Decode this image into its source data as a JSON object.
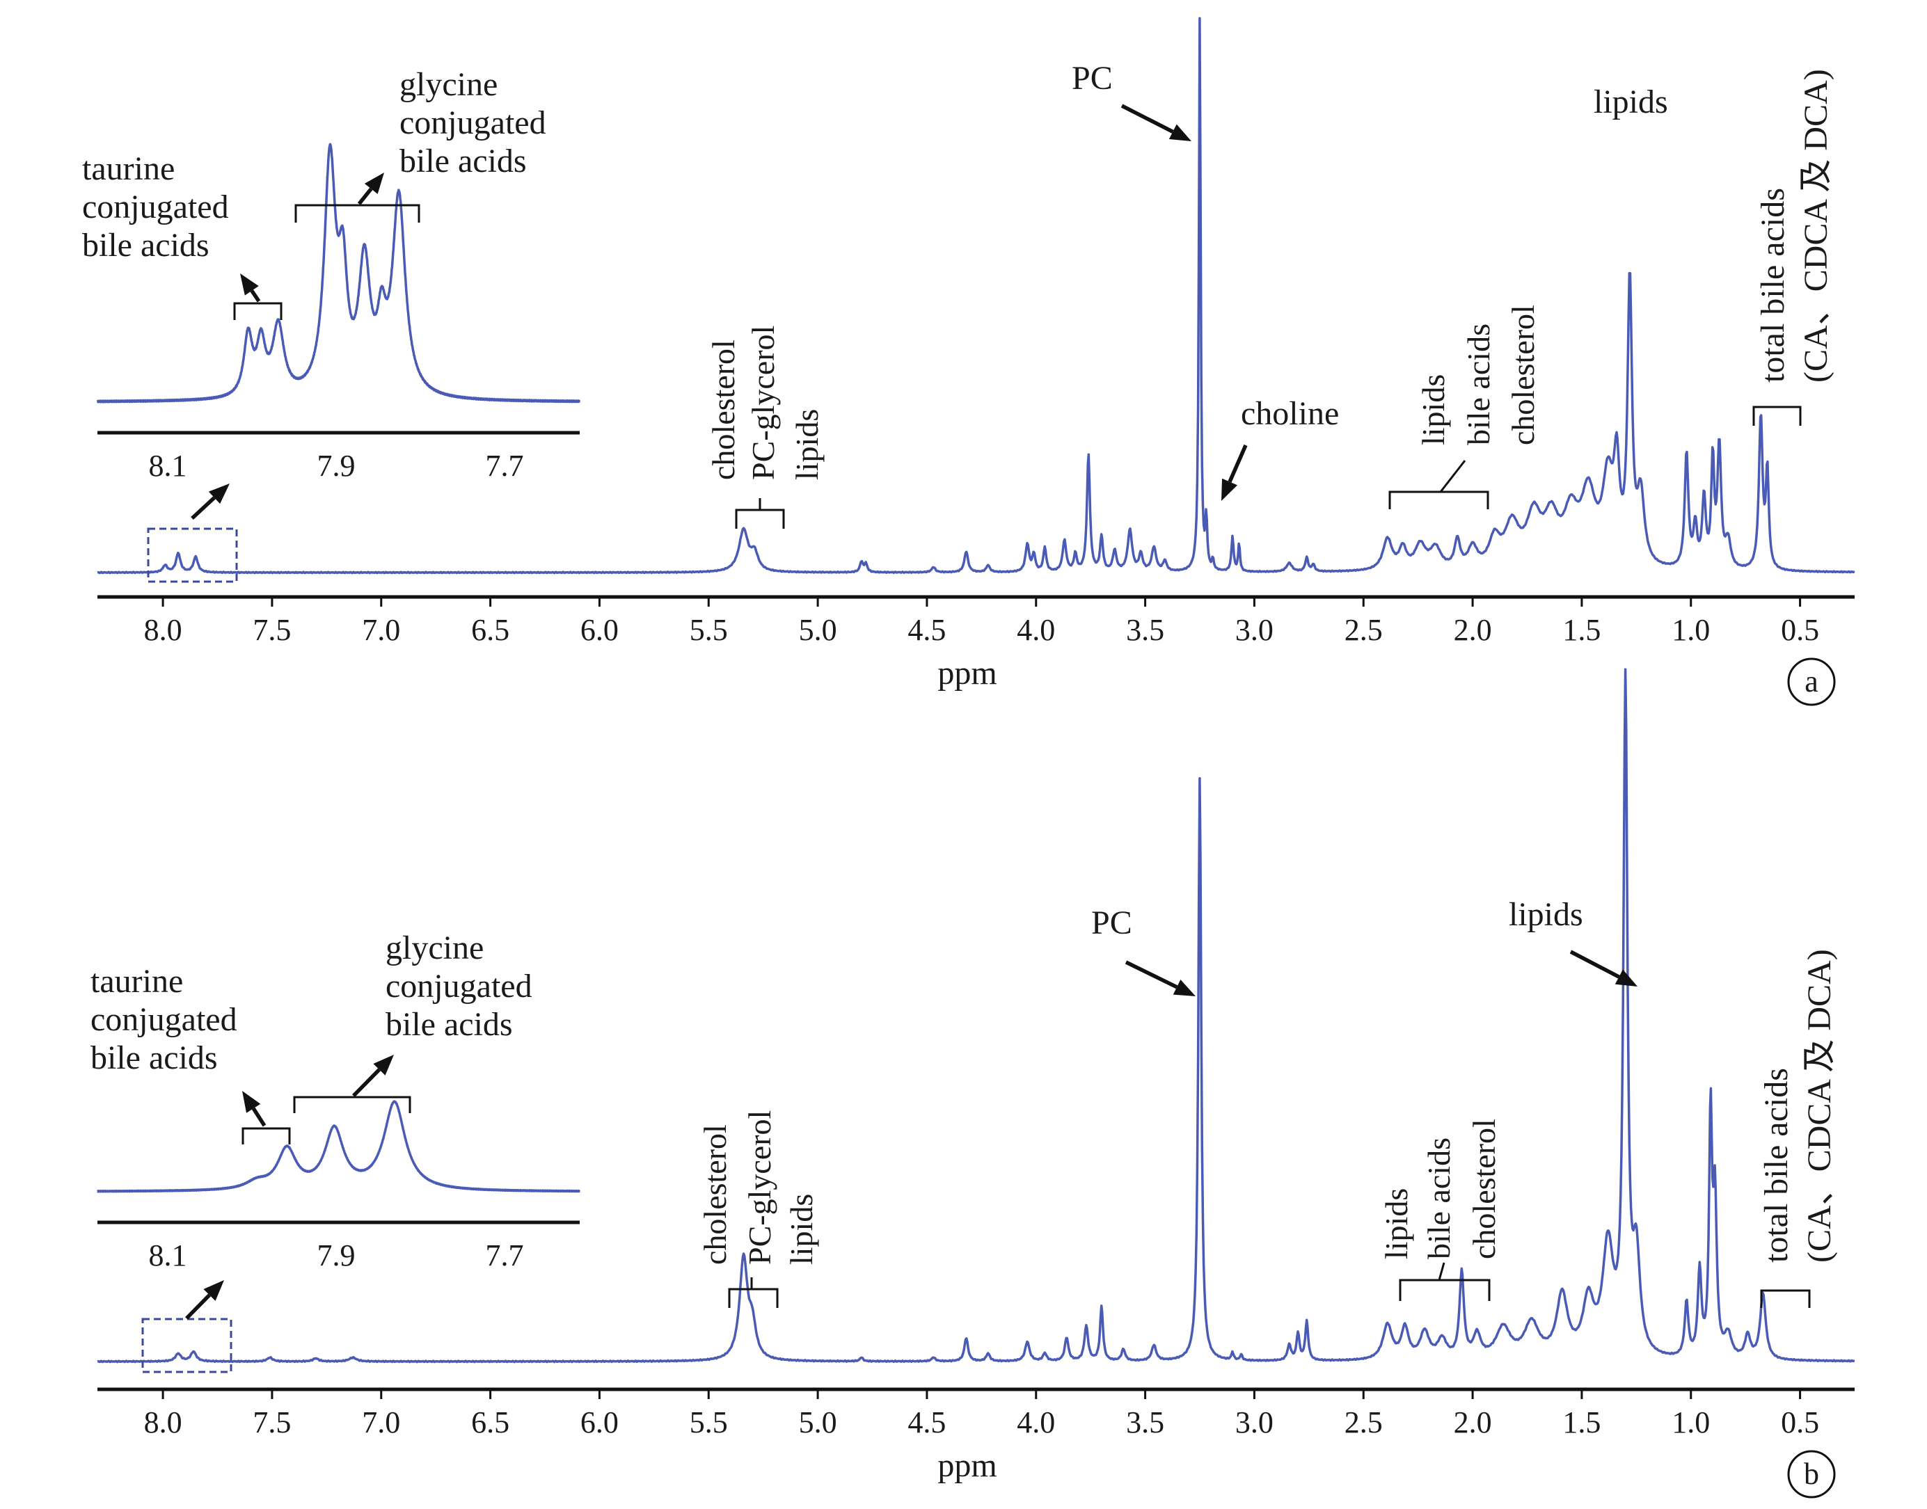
{
  "colors": {
    "spectrum": "#4a5bb5",
    "axis": "#111111",
    "text": "#1a1a1a"
  },
  "chart_data": [
    {
      "type": "line",
      "panel_label": "a",
      "xlabel": "ppm",
      "xlim": [
        8.3,
        0.25
      ],
      "x_reversed": true,
      "x_ticks": [
        "8.0",
        "7.5",
        "7.0",
        "6.5",
        "6.0",
        "5.5",
        "5.0",
        "4.5",
        "4.0",
        "3.5",
        "3.0",
        "2.5",
        "2.0",
        "1.5",
        "1.0",
        "0.5"
      ],
      "inset": {
        "x_ticks": [
          "8.1",
          "7.9",
          "7.7"
        ],
        "labels": {
          "taurine": [
            "taurine",
            "conjugated",
            "bile acids"
          ],
          "glycine": [
            "glycine",
            "conjugated",
            "bile acids"
          ]
        },
        "peaks": [
          {
            "ppm": 8.025,
            "h": 0.26,
            "w": 0.006
          },
          {
            "ppm": 8.01,
            "h": 0.22,
            "w": 0.006
          },
          {
            "ppm": 7.99,
            "h": 0.3,
            "w": 0.008
          },
          {
            "ppm": 7.93,
            "h": 1.0,
            "w": 0.008
          },
          {
            "ppm": 7.915,
            "h": 0.45,
            "w": 0.006
          },
          {
            "ppm": 7.89,
            "h": 0.55,
            "w": 0.008
          },
          {
            "ppm": 7.87,
            "h": 0.25,
            "w": 0.006
          },
          {
            "ppm": 7.85,
            "h": 0.85,
            "w": 0.009
          }
        ]
      },
      "annotations": {
        "PC": "PC",
        "choline": "choline",
        "lipids_main": "lipids",
        "cluster_55": [
          "cholesterol",
          "PC-glycerol",
          "lipids"
        ],
        "cluster_22": [
          "lipids",
          "bile acids",
          "cholesterol"
        ],
        "total_bile": [
          "total bile acids",
          "(CA、CDCA 及 DCA)"
        ]
      },
      "peaks": [
        {
          "ppm": 7.93,
          "h": 0.055,
          "w": 0.012
        },
        {
          "ppm": 7.85,
          "h": 0.045,
          "w": 0.012
        },
        {
          "ppm": 7.99,
          "h": 0.02,
          "w": 0.012
        },
        {
          "ppm": 5.34,
          "h": 0.12,
          "w": 0.025
        },
        {
          "ppm": 5.29,
          "h": 0.05,
          "w": 0.02
        },
        {
          "ppm": 4.8,
          "h": 0.03,
          "w": 0.008
        },
        {
          "ppm": 4.78,
          "h": 0.025,
          "w": 0.008
        },
        {
          "ppm": 4.47,
          "h": 0.015,
          "w": 0.01
        },
        {
          "ppm": 4.32,
          "h": 0.06,
          "w": 0.01
        },
        {
          "ppm": 4.22,
          "h": 0.02,
          "w": 0.01
        },
        {
          "ppm": 4.04,
          "h": 0.08,
          "w": 0.01
        },
        {
          "ppm": 4.01,
          "h": 0.05,
          "w": 0.008
        },
        {
          "ppm": 3.96,
          "h": 0.07,
          "w": 0.008
        },
        {
          "ppm": 3.87,
          "h": 0.09,
          "w": 0.01
        },
        {
          "ppm": 3.82,
          "h": 0.05,
          "w": 0.008
        },
        {
          "ppm": 3.76,
          "h": 0.34,
          "w": 0.008
        },
        {
          "ppm": 3.7,
          "h": 0.1,
          "w": 0.008
        },
        {
          "ppm": 3.64,
          "h": 0.06,
          "w": 0.01
        },
        {
          "ppm": 3.57,
          "h": 0.12,
          "w": 0.012
        },
        {
          "ppm": 3.52,
          "h": 0.05,
          "w": 0.01
        },
        {
          "ppm": 3.46,
          "h": 0.07,
          "w": 0.012
        },
        {
          "ppm": 3.41,
          "h": 0.03,
          "w": 0.01
        },
        {
          "ppm": 3.25,
          "h": 1.6,
          "w": 0.005
        },
        {
          "ppm": 3.22,
          "h": 0.14,
          "w": 0.005
        },
        {
          "ppm": 3.19,
          "h": 0.03,
          "w": 0.005
        },
        {
          "ppm": 3.1,
          "h": 0.1,
          "w": 0.006
        },
        {
          "ppm": 3.07,
          "h": 0.08,
          "w": 0.005
        },
        {
          "ppm": 2.84,
          "h": 0.025,
          "w": 0.015
        },
        {
          "ppm": 2.76,
          "h": 0.04,
          "w": 0.008
        },
        {
          "ppm": 2.73,
          "h": 0.02,
          "w": 0.008
        },
        {
          "ppm": 2.39,
          "h": 0.09,
          "w": 0.025
        },
        {
          "ppm": 2.32,
          "h": 0.06,
          "w": 0.02
        },
        {
          "ppm": 2.24,
          "h": 0.07,
          "w": 0.03
        },
        {
          "ppm": 2.17,
          "h": 0.06,
          "w": 0.03
        },
        {
          "ppm": 2.07,
          "h": 0.08,
          "w": 0.015
        },
        {
          "ppm": 2.0,
          "h": 0.06,
          "w": 0.025
        },
        {
          "ppm": 1.9,
          "h": 0.08,
          "w": 0.03
        },
        {
          "ppm": 1.82,
          "h": 0.12,
          "w": 0.04
        },
        {
          "ppm": 1.72,
          "h": 0.14,
          "w": 0.04
        },
        {
          "ppm": 1.64,
          "h": 0.13,
          "w": 0.04
        },
        {
          "ppm": 1.55,
          "h": 0.14,
          "w": 0.04
        },
        {
          "ppm": 1.47,
          "h": 0.2,
          "w": 0.04
        },
        {
          "ppm": 1.38,
          "h": 0.24,
          "w": 0.03
        },
        {
          "ppm": 1.34,
          "h": 0.25,
          "w": 0.015
        },
        {
          "ppm": 1.28,
          "h": 0.8,
          "w": 0.012
        },
        {
          "ppm": 1.23,
          "h": 0.2,
          "w": 0.02
        },
        {
          "ppm": 1.02,
          "h": 0.33,
          "w": 0.01
        },
        {
          "ppm": 0.98,
          "h": 0.12,
          "w": 0.01
        },
        {
          "ppm": 0.94,
          "h": 0.2,
          "w": 0.01
        },
        {
          "ppm": 0.9,
          "h": 0.31,
          "w": 0.008
        },
        {
          "ppm": 0.87,
          "h": 0.35,
          "w": 0.01
        },
        {
          "ppm": 0.83,
          "h": 0.08,
          "w": 0.015
        },
        {
          "ppm": 0.68,
          "h": 0.44,
          "w": 0.01
        },
        {
          "ppm": 0.65,
          "h": 0.28,
          "w": 0.008
        }
      ]
    },
    {
      "type": "line",
      "panel_label": "b",
      "xlabel": "ppm",
      "xlim": [
        8.3,
        0.25
      ],
      "x_reversed": true,
      "x_ticks": [
        "8.0",
        "7.5",
        "7.0",
        "6.5",
        "6.0",
        "5.5",
        "5.0",
        "4.5",
        "4.0",
        "3.5",
        "3.0",
        "2.5",
        "2.0",
        "1.5",
        "1.0",
        "0.5"
      ],
      "inset": {
        "x_ticks": [
          "8.1",
          "7.9",
          "7.7"
        ],
        "labels": {
          "taurine": [
            "taurine",
            "conjugated",
            "bile acids"
          ],
          "glycine": [
            "glycine",
            "conjugated",
            "bile acids"
          ]
        },
        "peaks": [
          {
            "ppm": 7.98,
            "h": 0.33,
            "w": 0.013
          },
          {
            "ppm": 7.925,
            "h": 0.49,
            "w": 0.013
          },
          {
            "ppm": 7.855,
            "h": 0.72,
            "w": 0.015
          },
          {
            "ppm": 8.015,
            "h": 0.06,
            "w": 0.015
          }
        ]
      },
      "annotations": {
        "PC": "PC",
        "lipids_main": "lipids",
        "cluster_55": [
          "cholesterol",
          "PC-glycerol",
          "lipids"
        ],
        "cluster_22": [
          "lipids",
          "bile acids",
          "cholesterol"
        ],
        "total_bile": [
          "total bile acids",
          "(CA、CDCA 及 DCA)"
        ]
      },
      "peaks": [
        {
          "ppm": 7.93,
          "h": 0.02,
          "w": 0.015
        },
        {
          "ppm": 7.86,
          "h": 0.025,
          "w": 0.015
        },
        {
          "ppm": 7.51,
          "h": 0.01,
          "w": 0.015
        },
        {
          "ppm": 7.3,
          "h": 0.008,
          "w": 0.015
        },
        {
          "ppm": 7.13,
          "h": 0.01,
          "w": 0.02
        },
        {
          "ppm": 5.34,
          "h": 0.26,
          "w": 0.022
        },
        {
          "ppm": 5.3,
          "h": 0.08,
          "w": 0.02
        },
        {
          "ppm": 4.8,
          "h": 0.01,
          "w": 0.008
        },
        {
          "ppm": 4.47,
          "h": 0.01,
          "w": 0.01
        },
        {
          "ppm": 4.32,
          "h": 0.06,
          "w": 0.01
        },
        {
          "ppm": 4.22,
          "h": 0.02,
          "w": 0.01
        },
        {
          "ppm": 4.04,
          "h": 0.05,
          "w": 0.012
        },
        {
          "ppm": 3.96,
          "h": 0.02,
          "w": 0.01
        },
        {
          "ppm": 3.86,
          "h": 0.06,
          "w": 0.01
        },
        {
          "ppm": 3.77,
          "h": 0.09,
          "w": 0.01
        },
        {
          "ppm": 3.7,
          "h": 0.14,
          "w": 0.008
        },
        {
          "ppm": 3.6,
          "h": 0.03,
          "w": 0.01
        },
        {
          "ppm": 3.46,
          "h": 0.04,
          "w": 0.012
        },
        {
          "ppm": 3.25,
          "h": 1.5,
          "w": 0.008
        },
        {
          "ppm": 3.1,
          "h": 0.02,
          "w": 0.006
        },
        {
          "ppm": 3.06,
          "h": 0.015,
          "w": 0.006
        },
        {
          "ppm": 2.8,
          "h": 0.07,
          "w": 0.008
        },
        {
          "ppm": 2.76,
          "h": 0.1,
          "w": 0.008
        },
        {
          "ppm": 2.84,
          "h": 0.04,
          "w": 0.01
        },
        {
          "ppm": 2.39,
          "h": 0.09,
          "w": 0.025
        },
        {
          "ppm": 2.31,
          "h": 0.08,
          "w": 0.02
        },
        {
          "ppm": 2.22,
          "h": 0.07,
          "w": 0.025
        },
        {
          "ppm": 2.14,
          "h": 0.05,
          "w": 0.025
        },
        {
          "ppm": 2.05,
          "h": 0.22,
          "w": 0.012
        },
        {
          "ppm": 1.98,
          "h": 0.06,
          "w": 0.02
        },
        {
          "ppm": 1.86,
          "h": 0.08,
          "w": 0.04
        },
        {
          "ppm": 1.73,
          "h": 0.09,
          "w": 0.04
        },
        {
          "ppm": 1.59,
          "h": 0.16,
          "w": 0.03
        },
        {
          "ppm": 1.47,
          "h": 0.14,
          "w": 0.03
        },
        {
          "ppm": 1.38,
          "h": 0.28,
          "w": 0.03
        },
        {
          "ppm": 1.3,
          "h": 1.7,
          "w": 0.011
        },
        {
          "ppm": 1.25,
          "h": 0.25,
          "w": 0.02
        },
        {
          "ppm": 1.02,
          "h": 0.14,
          "w": 0.01
        },
        {
          "ppm": 0.96,
          "h": 0.22,
          "w": 0.01
        },
        {
          "ppm": 0.91,
          "h": 0.61,
          "w": 0.008
        },
        {
          "ppm": 0.89,
          "h": 0.4,
          "w": 0.01
        },
        {
          "ppm": 0.83,
          "h": 0.06,
          "w": 0.02
        },
        {
          "ppm": 0.74,
          "h": 0.06,
          "w": 0.015
        },
        {
          "ppm": 0.67,
          "h": 0.17,
          "w": 0.015
        }
      ]
    }
  ]
}
